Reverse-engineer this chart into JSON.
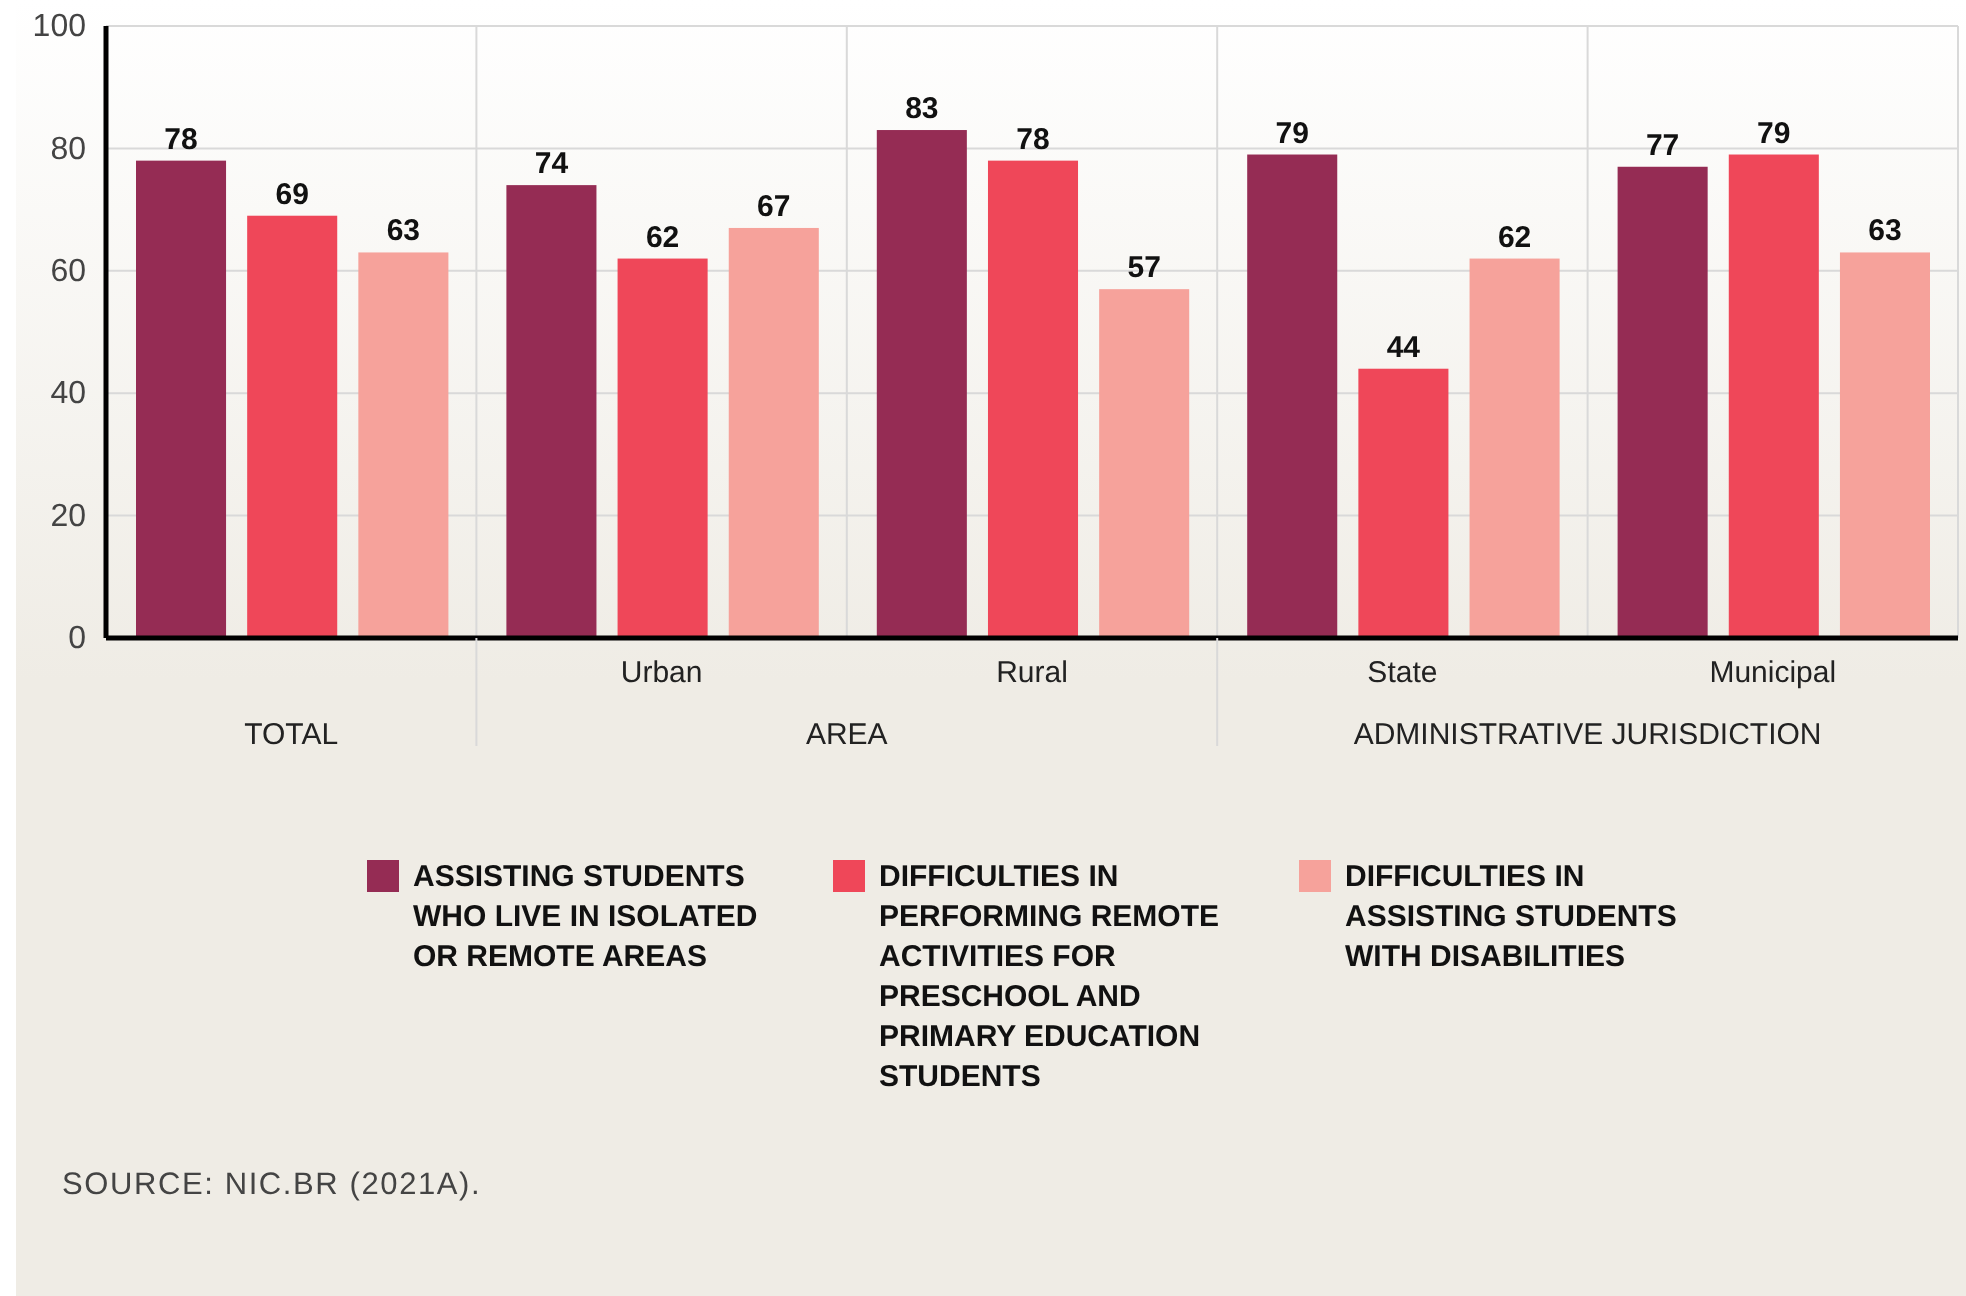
{
  "chart_data": {
    "type": "bar",
    "categories": [
      null,
      "Urban",
      "Rural",
      "State",
      "Municipal"
    ],
    "series": [
      {
        "name": "ASSISTING STUDENTS WHO LIVE IN ISOLATED OR REMOTE AREAS",
        "color": "#952c54",
        "values": [
          78,
          74,
          83,
          79,
          77
        ]
      },
      {
        "name": "DIFFICULTIES IN PERFORMING REMOTE ACTIVITIES FOR PRESCHOOL AND PRIMARY EDUCATION STUDENTS",
        "color": "#ef4759",
        "values": [
          69,
          62,
          78,
          44,
          79
        ]
      },
      {
        "name": "DIFFICULTIES IN ASSISTING STUDENTS WITH DISABILITIES",
        "color": "#f6a29b",
        "values": [
          63,
          67,
          57,
          62,
          63
        ]
      }
    ],
    "ylim": [
      0,
      100
    ],
    "yticks": [
      0,
      20,
      40,
      60,
      80,
      100
    ],
    "grid": true,
    "legend": "bottom",
    "data_labels": true,
    "annotations": [
      "TOTAL",
      "AREA",
      "ADMINISTRATIVE JURISDICTION",
      "SOURCE: NIC.BR (2021A)."
    ]
  }
}
